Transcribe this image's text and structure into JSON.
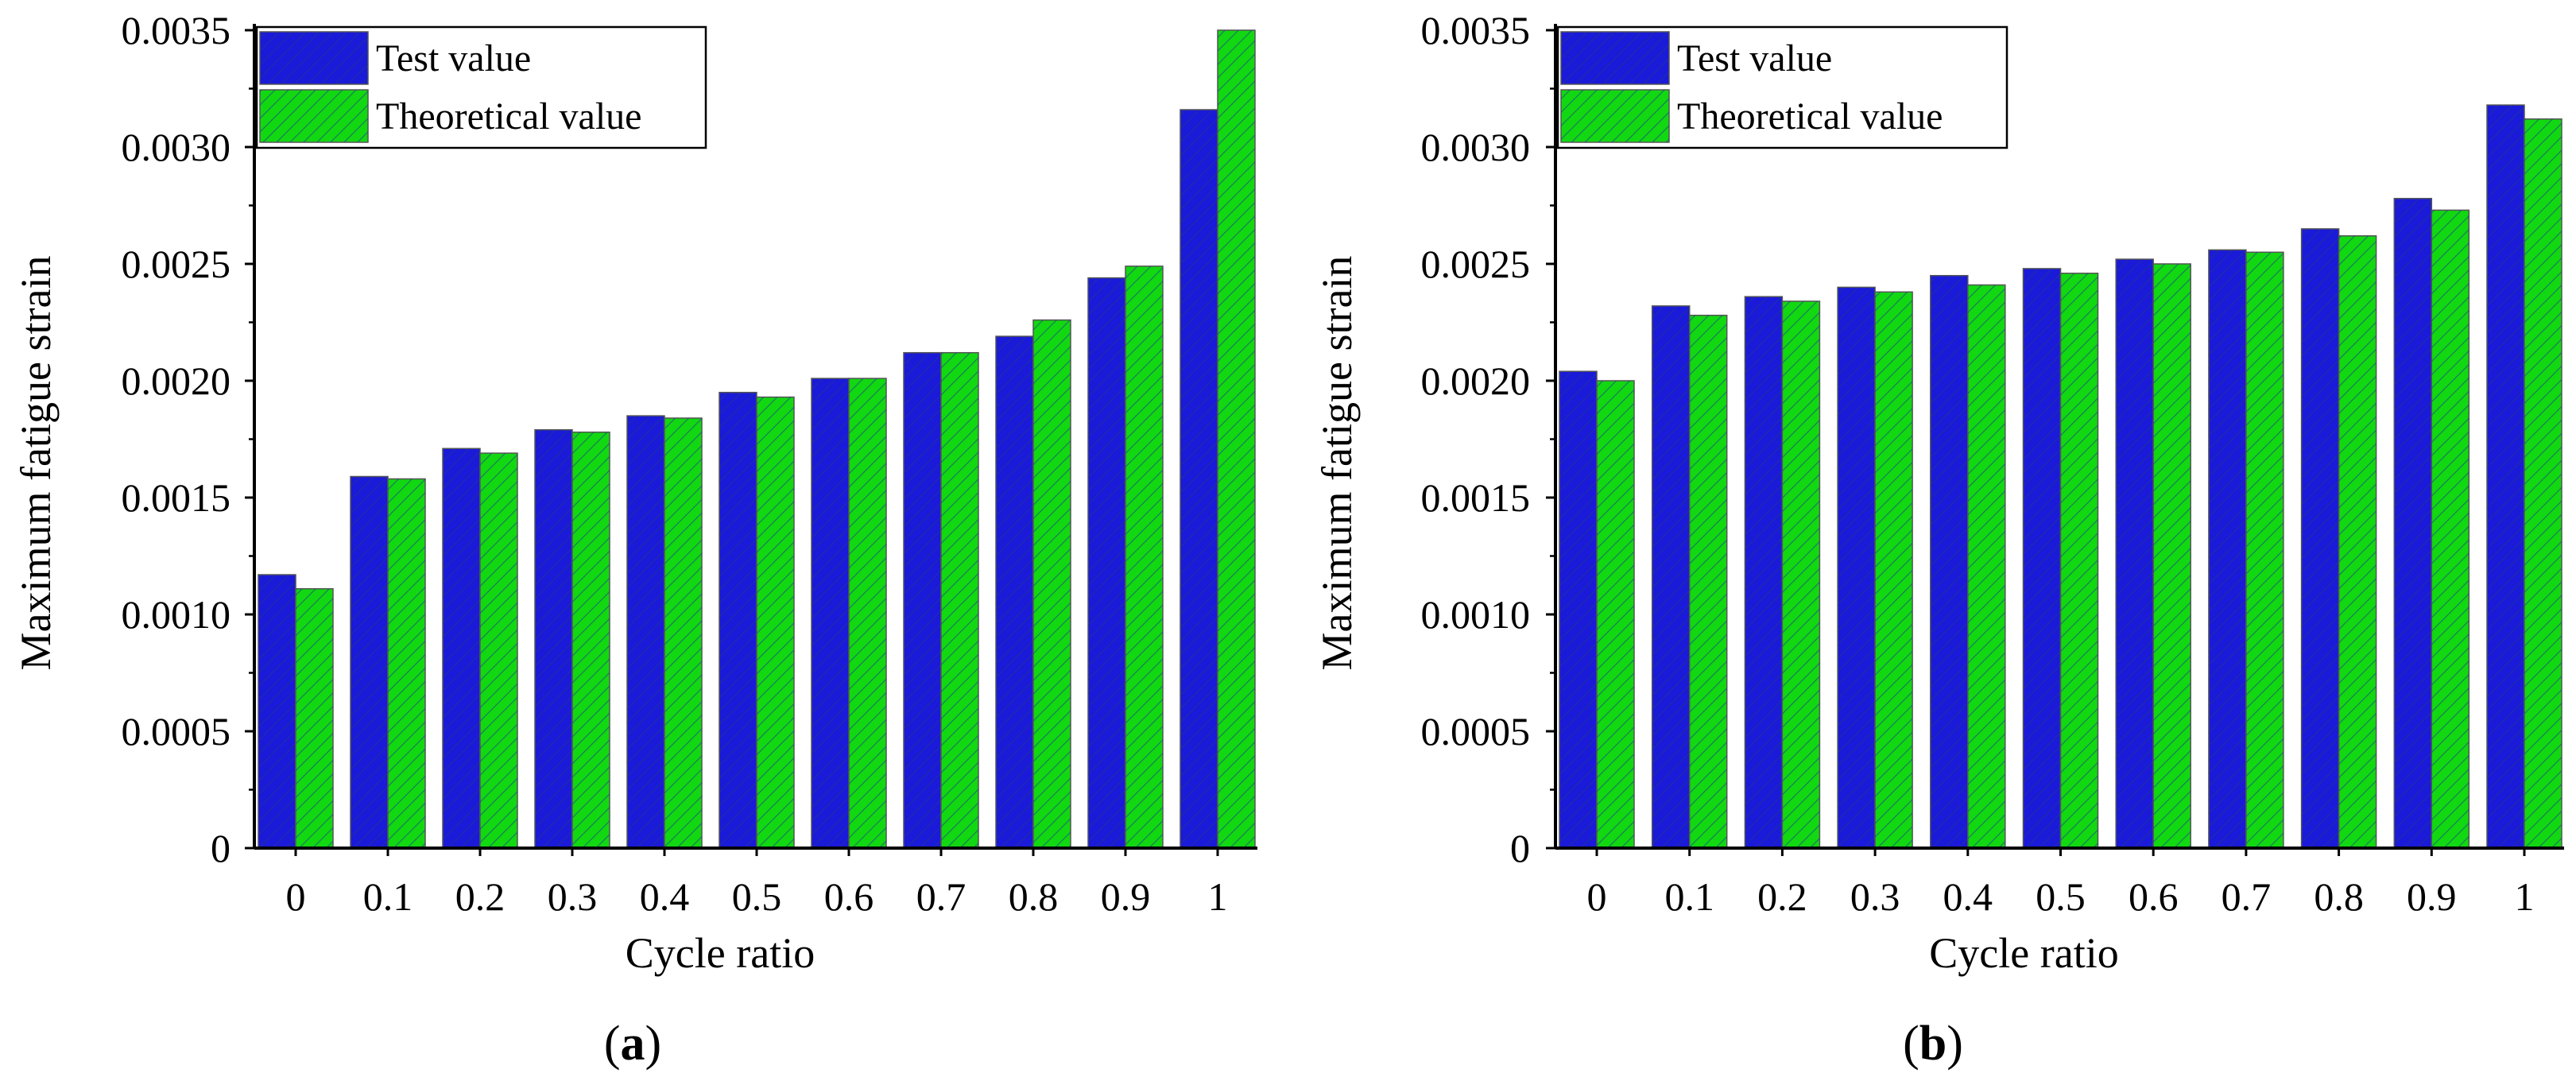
{
  "colors": {
    "test": "#1a1ad8",
    "theoretical": "#12d812",
    "bar_edge": "#555555",
    "hatch": "#1f3a8a",
    "axis": "#000000"
  },
  "chart_data": [
    {
      "type": "bar",
      "panel_label": "a",
      "title": "",
      "xlabel": "Cycle ratio",
      "ylabel": "Maximum fatigue strain",
      "categories": [
        "0",
        "0.1",
        "0.2",
        "0.3",
        "0.4",
        "0.5",
        "0.6",
        "0.7",
        "0.8",
        "0.9",
        "1"
      ],
      "yticks": [
        0,
        0.0005,
        0.001,
        0.0015,
        0.002,
        0.0025,
        0.003,
        0.0035
      ],
      "ytick_labels": [
        "0",
        "0.0005",
        "0.0010",
        "0.0015",
        "0.0020",
        "0.0025",
        "0.0030",
        "0.0035"
      ],
      "ylim": [
        0,
        0.0035
      ],
      "grid": false,
      "legend_position": "top-left",
      "series": [
        {
          "name": "Test value",
          "values": [
            0.00117,
            0.00159,
            0.00171,
            0.00179,
            0.00185,
            0.00195,
            0.00201,
            0.00212,
            0.00219,
            0.00244,
            0.00316
          ]
        },
        {
          "name": "Theoretical value",
          "values": [
            0.00111,
            0.00158,
            0.00169,
            0.00178,
            0.00184,
            0.00193,
            0.00201,
            0.00212,
            0.00226,
            0.00249,
            0.0035
          ]
        }
      ]
    },
    {
      "type": "bar",
      "panel_label": "b",
      "title": "",
      "xlabel": "Cycle ratio",
      "ylabel": "Maximum fatigue strain",
      "categories": [
        "0",
        "0.1",
        "0.2",
        "0.3",
        "0.4",
        "0.5",
        "0.6",
        "0.7",
        "0.8",
        "0.9",
        "1"
      ],
      "yticks": [
        0,
        0.0005,
        0.001,
        0.0015,
        0.002,
        0.0025,
        0.003,
        0.0035
      ],
      "ytick_labels": [
        "0",
        "0.0005",
        "0.0010",
        "0.0015",
        "0.0020",
        "0.0025",
        "0.0030",
        "0.0035"
      ],
      "ylim": [
        0,
        0.0035
      ],
      "grid": false,
      "legend_position": "top-left",
      "series": [
        {
          "name": "Test value",
          "values": [
            0.00204,
            0.00232,
            0.00236,
            0.0024,
            0.00245,
            0.00248,
            0.00252,
            0.00256,
            0.00265,
            0.00278,
            0.00318
          ]
        },
        {
          "name": "Theoretical value",
          "values": [
            0.002,
            0.00228,
            0.00234,
            0.00238,
            0.00241,
            0.00246,
            0.0025,
            0.00255,
            0.00262,
            0.00273,
            0.00312
          ]
        }
      ]
    }
  ]
}
